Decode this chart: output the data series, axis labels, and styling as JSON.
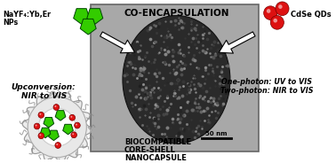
{
  "title": "CO-ENCAPSULATION",
  "left_label_line1": "NaYF₄:Yb,Er",
  "left_label_line2": "NPs",
  "right_label": "CdSe QDs",
  "upconversion_line1": "Upconversion:",
  "upconversion_line2": "NIR to VIS",
  "onephoton_line1": "One-photon: UV to VIS",
  "twophoton_line1": "Two-photon: NIR to VIS",
  "bottom_line1": "BIOCOMPATIBLE",
  "bottom_line2": "CORE-SHELL",
  "bottom_line3": "NANOCAPSULE",
  "scalebar_text": "50 nm",
  "bg_color": "#ffffff",
  "green_color": "#33cc00",
  "red_color": "#dd1111",
  "text_color": "#000000",
  "tem_bg": "#b0b0b0",
  "tem_dark": "#2a2a2a"
}
